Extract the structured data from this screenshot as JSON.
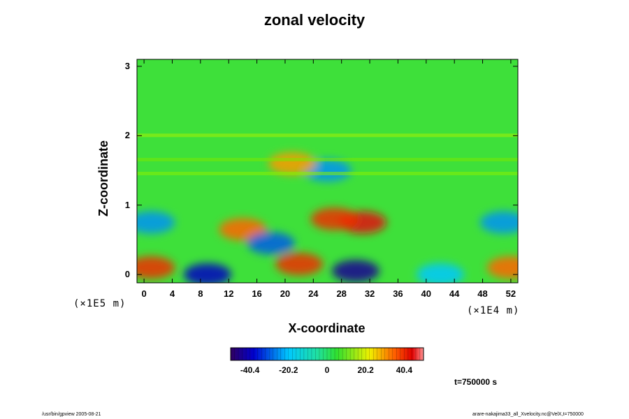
{
  "chart_data": {
    "type": "heatmap",
    "title": "zonal velocity",
    "xlabel": "X-coordinate",
    "ylabel": "Z-coordinate",
    "x_scale_note": "(×1E4 m)",
    "z_scale_note": "(×1E5 m)",
    "x_ticks": [
      "0",
      "4",
      "8",
      "12",
      "16",
      "20",
      "24",
      "28",
      "32",
      "36",
      "40",
      "44",
      "48",
      "52"
    ],
    "x_tick_values": [
      0,
      4,
      8,
      12,
      16,
      20,
      24,
      28,
      32,
      36,
      40,
      44,
      48,
      52
    ],
    "xlim": [
      -1,
      53
    ],
    "y_ticks": [
      "0",
      "1",
      "2",
      "3"
    ],
    "y_tick_values": [
      0,
      1,
      2,
      3
    ],
    "ylim": [
      -0.12,
      3.1
    ],
    "colorbar": {
      "ticks": [
        "-40.4",
        "-20.2",
        "0",
        "20.2",
        "40.4"
      ],
      "tick_values": [
        -40.4,
        -20.2,
        0,
        20.2,
        40.4
      ],
      "range": [
        -50.5,
        50.5
      ]
    },
    "features": [
      {
        "x": 26,
        "z": 1.5,
        "value": -25
      },
      {
        "x": 21,
        "z": 1.6,
        "value": 30
      },
      {
        "x": 14,
        "z": 0.65,
        "value": 35
      },
      {
        "x": 31,
        "z": 0.75,
        "value": 45
      },
      {
        "x": 27,
        "z": 0.8,
        "value": 40
      },
      {
        "x": 18,
        "z": 0.45,
        "value": -30
      },
      {
        "x": 22,
        "z": 0.15,
        "value": 40
      },
      {
        "x": 30,
        "z": 0.05,
        "value": -45
      },
      {
        "x": 1,
        "z": 0.1,
        "value": 40
      },
      {
        "x": 52,
        "z": 0.1,
        "value": 35
      },
      {
        "x": 1,
        "z": 0.75,
        "value": -25
      },
      {
        "x": 51,
        "z": 0.75,
        "value": -25
      },
      {
        "x": 9,
        "z": 0.0,
        "value": -40
      },
      {
        "x": 42,
        "z": 0.0,
        "value": -20
      }
    ]
  },
  "time_label": "t=750000 s",
  "footer_left": "/usr/bin/gpview 2005-08-21",
  "footer_right": "arare-nakajima33_all_Xvelocity.nc@VelX,t=750000"
}
